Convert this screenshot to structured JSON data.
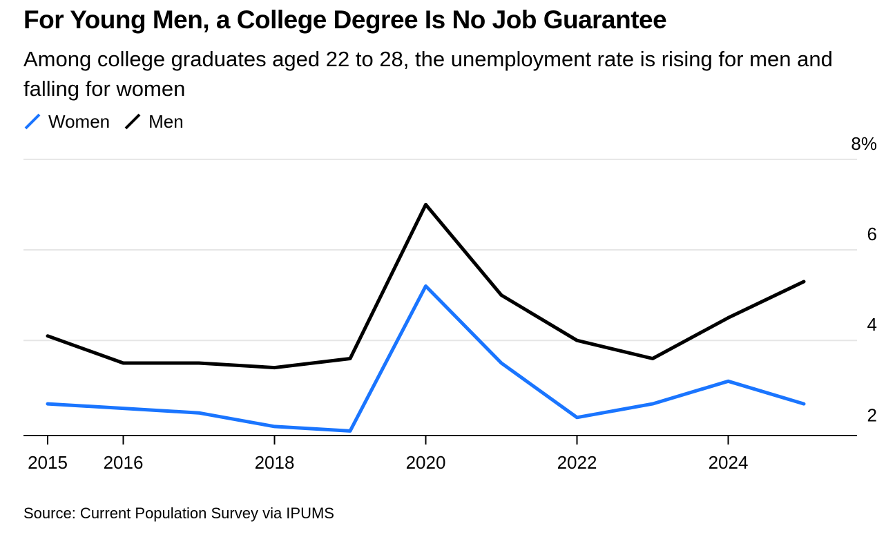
{
  "title": "For Young Men, a College Degree Is No Job Guarantee",
  "subtitle": "Among college graduates aged 22 to 28, the unemployment rate is rising for men and falling for women",
  "source": "Source: Current Population Survey via IPUMS",
  "legend": [
    {
      "label": "Women",
      "color": "#1a75ff"
    },
    {
      "label": "Men",
      "color": "#000000"
    }
  ],
  "chart_data": {
    "type": "line",
    "title": "For Young Men, a College Degree Is No Job Guarantee",
    "x": [
      2015,
      2016,
      2017,
      2018,
      2019,
      2020,
      2021,
      2022,
      2023,
      2024,
      2025
    ],
    "series": [
      {
        "name": "Women",
        "color": "#1a75ff",
        "values": [
          2.6,
          2.5,
          2.4,
          2.1,
          2.0,
          5.2,
          3.5,
          2.3,
          2.6,
          3.1,
          2.6
        ]
      },
      {
        "name": "Men",
        "color": "#000000",
        "values": [
          4.1,
          3.5,
          3.5,
          3.4,
          3.6,
          7.0,
          5.0,
          4.0,
          3.6,
          4.5,
          5.3
        ]
      }
    ],
    "x_ticks": [
      "2015",
      "2016",
      "2018",
      "2020",
      "2022",
      "2024"
    ],
    "y_ticks": [
      "2",
      "4",
      "6",
      "8%"
    ],
    "y_tick_values": [
      2,
      4,
      6,
      8
    ],
    "ylim": [
      1.9,
      8
    ],
    "xlim": [
      2015,
      2026
    ],
    "xlabel": "",
    "ylabel": "",
    "grid": true,
    "legend_position": "top-left"
  }
}
